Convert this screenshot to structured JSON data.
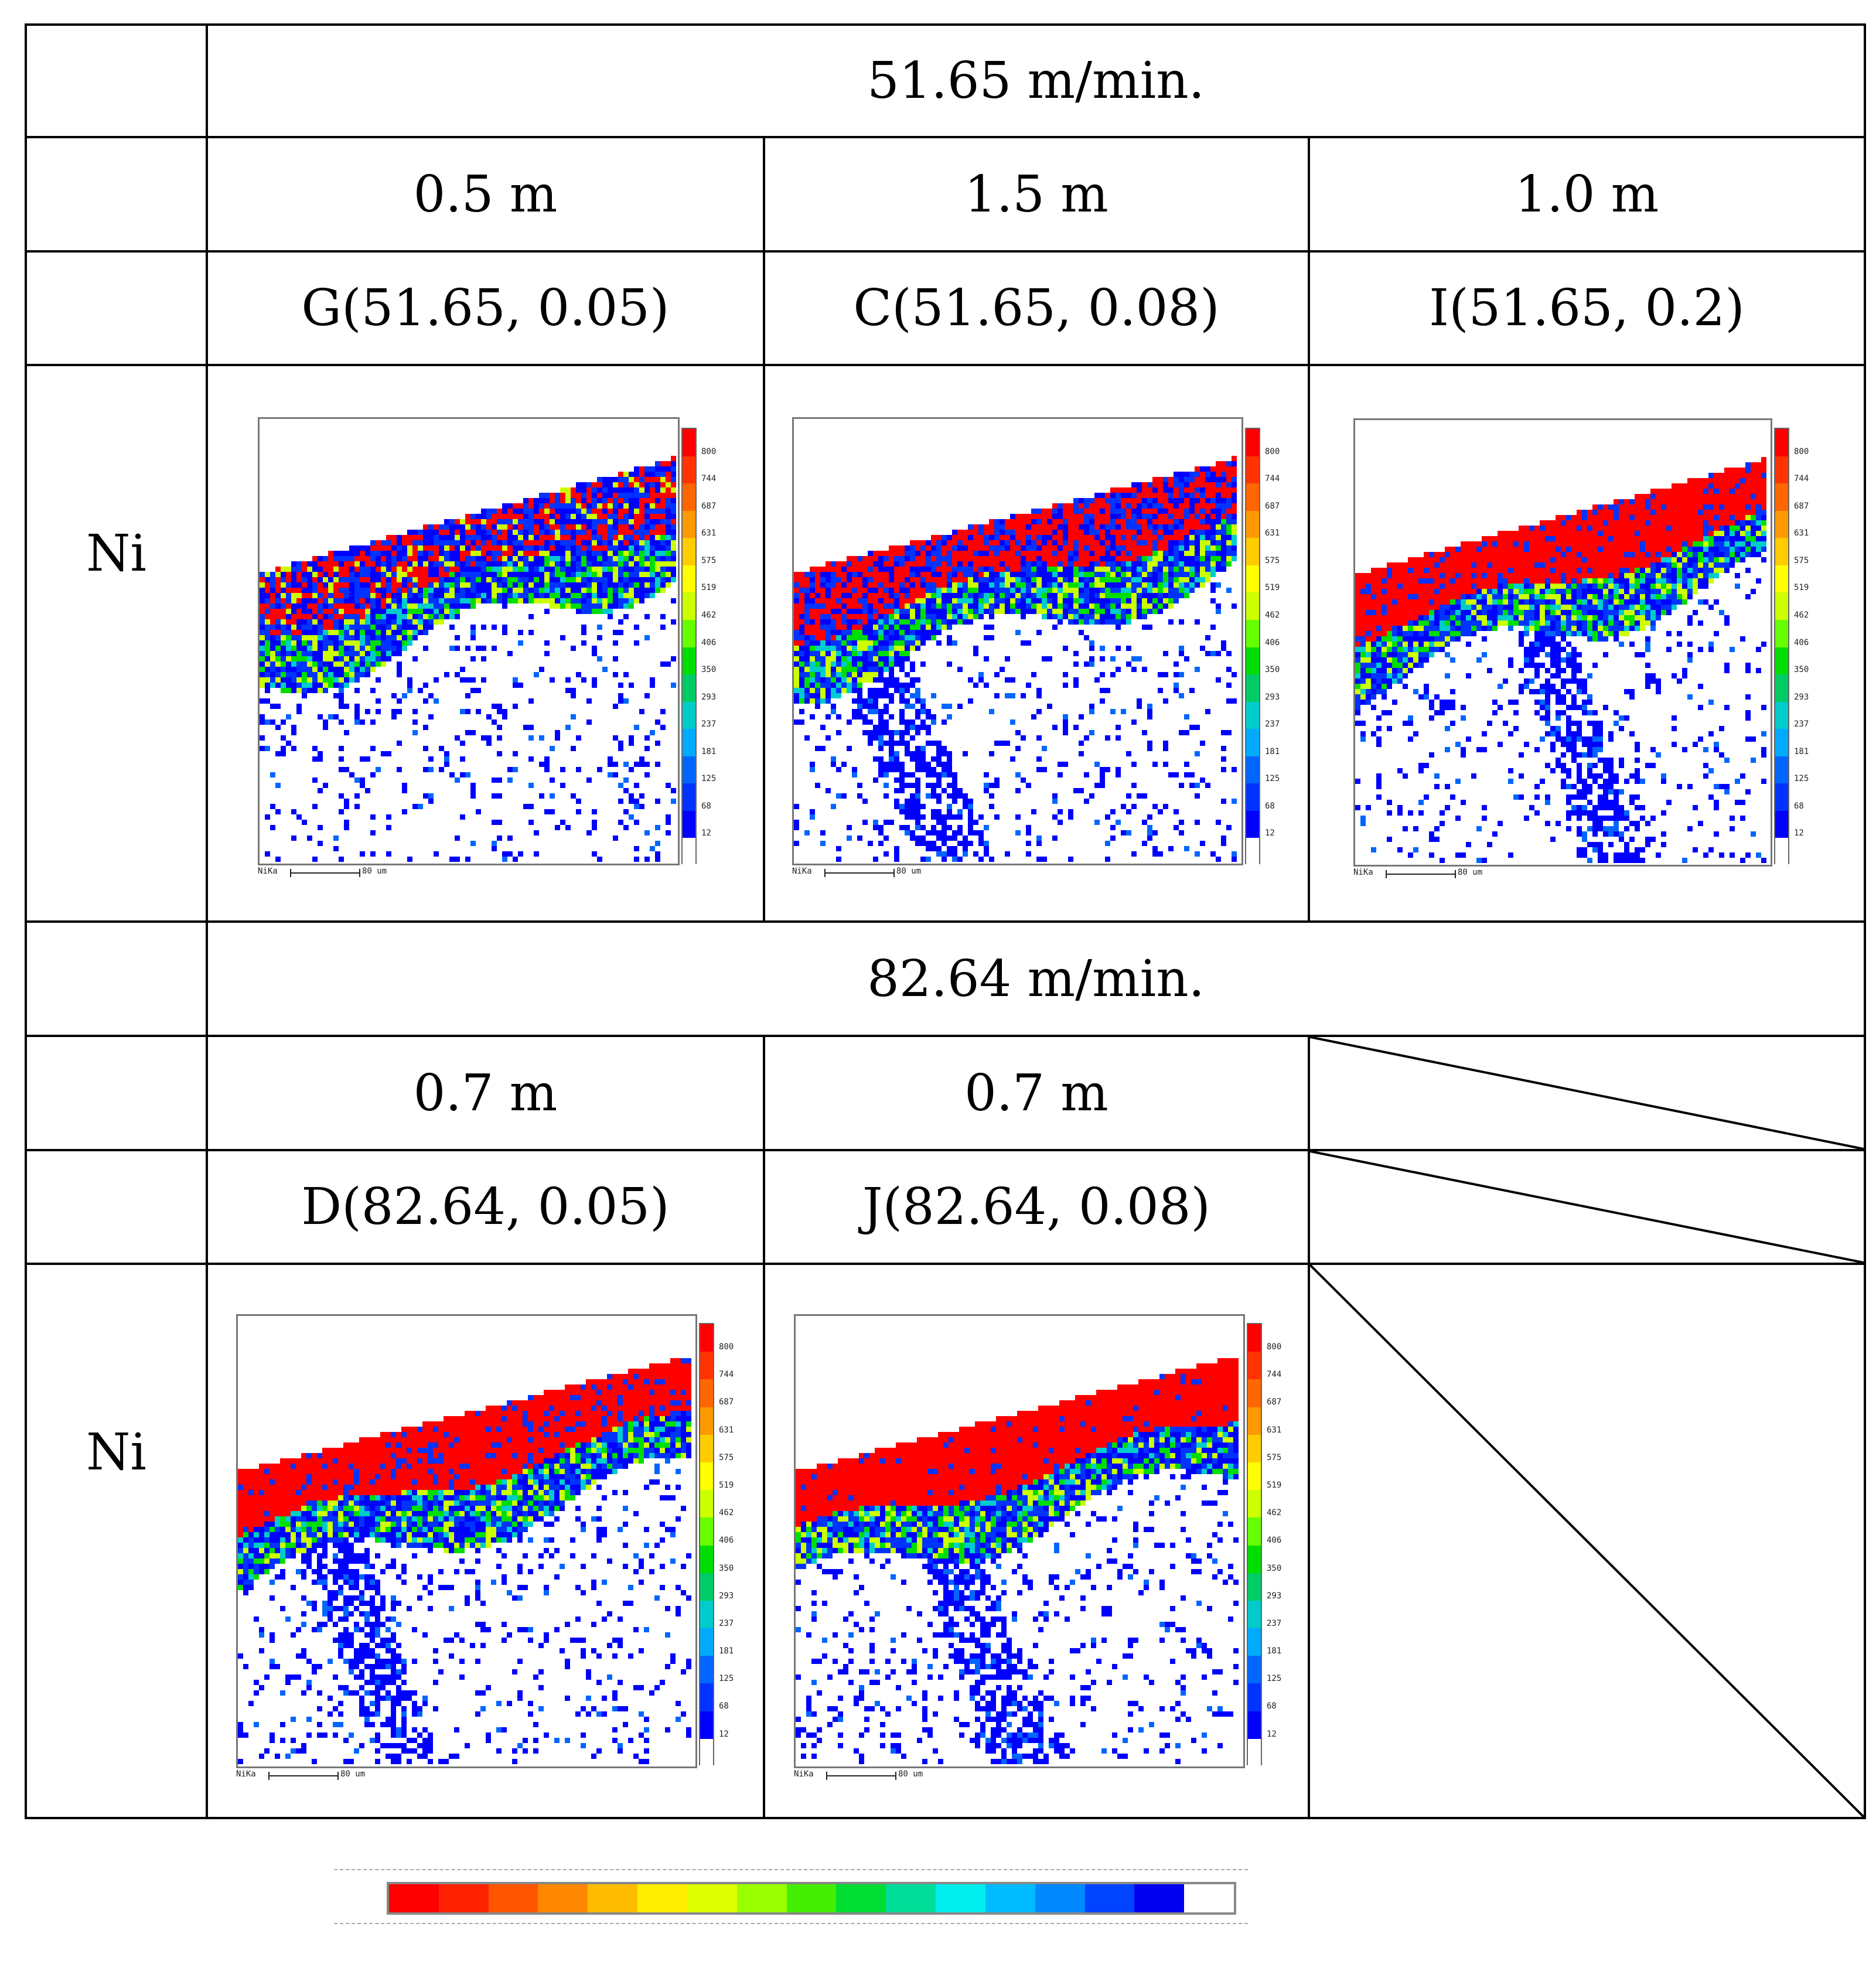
{
  "table": {
    "speed_top": "51.65 m/min.",
    "speed_bottom": "82.64 m/min.",
    "row_label": "Ni",
    "top": {
      "lengths": [
        "0.5 m",
        "1.5 m",
        "1.0 m"
      ],
      "samples": [
        "G(51.65, 0.05)",
        "C(51.65, 0.08)",
        "I(51.65, 0.2)"
      ]
    },
    "bottom": {
      "lengths": [
        "0.7 m",
        "0.7 m"
      ],
      "samples": [
        "D(82.64, 0.05)",
        "J(82.64, 0.08)"
      ]
    }
  },
  "maps": {
    "scale_values": [
      "800",
      "744",
      "687",
      "631",
      "575",
      "519",
      "462",
      "406",
      "350",
      "293",
      "237",
      "181",
      "125",
      "68",
      "12"
    ],
    "scale_colors": [
      "#ff0000",
      "#ff3300",
      "#ff6600",
      "#ff9900",
      "#ffcc00",
      "#ffff00",
      "#ccff00",
      "#66ff00",
      "#00dd00",
      "#00cc66",
      "#00cccc",
      "#00aaff",
      "#0066ff",
      "#0033ff",
      "#0000ff",
      "#ffffff"
    ],
    "probe_label": "NiKa",
    "scalebar_label": "80 um"
  },
  "legend_colors": [
    "#ff0000",
    "#ff2200",
    "#ff5500",
    "#ff8800",
    "#ffbb00",
    "#ffee00",
    "#ddff00",
    "#99ff00",
    "#44ee00",
    "#00dd33",
    "#00dd99",
    "#00eeee",
    "#00bbff",
    "#0088ff",
    "#0044ff",
    "#0000ee",
    "#ffffff"
  ]
}
